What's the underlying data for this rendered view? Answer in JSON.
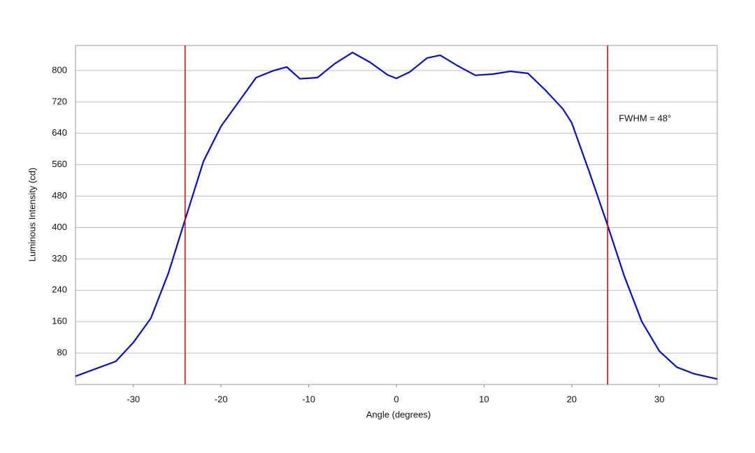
{
  "chart_data": {
    "type": "line",
    "x_label": "Angle (degrees)",
    "y_label": "Luminous Intensity (cd)",
    "x": [
      -36.6,
      -32,
      -30,
      -28,
      -26,
      -24,
      -22,
      -20,
      -18,
      -16,
      -14,
      -12.5,
      -11,
      -9,
      -7,
      -5,
      -3,
      -1,
      0,
      1.5,
      3.5,
      5,
      7,
      9,
      11,
      13,
      15,
      17,
      19,
      20,
      22,
      24,
      26,
      28,
      30,
      32,
      34,
      36.6
    ],
    "series": [
      {
        "color": "#0a0acc",
        "values": [
          21,
          59,
          107,
          169,
          284,
          427,
          569,
          658,
          720,
          782,
          800,
          809,
          779,
          782,
          818,
          846,
          821,
          789,
          780,
          796,
          832,
          839,
          812,
          788,
          791,
          798,
          793,
          750,
          702,
          667,
          542,
          412,
          276,
          160,
          85,
          44,
          27,
          14
        ]
      }
    ],
    "vlines": {
      "color": "#cc1111",
      "x": [
        -24.1,
        24.1
      ]
    },
    "annotation": "FWHM = 48°",
    "xlim": [
      -36.6,
      36.6
    ],
    "xticks": [
      -30,
      -20,
      -10,
      0,
      10,
      20,
      30
    ],
    "ylim": [
      0,
      864
    ],
    "yticks": [
      80,
      160,
      240,
      320,
      400,
      480,
      560,
      640,
      720,
      800
    ],
    "grid": true
  }
}
